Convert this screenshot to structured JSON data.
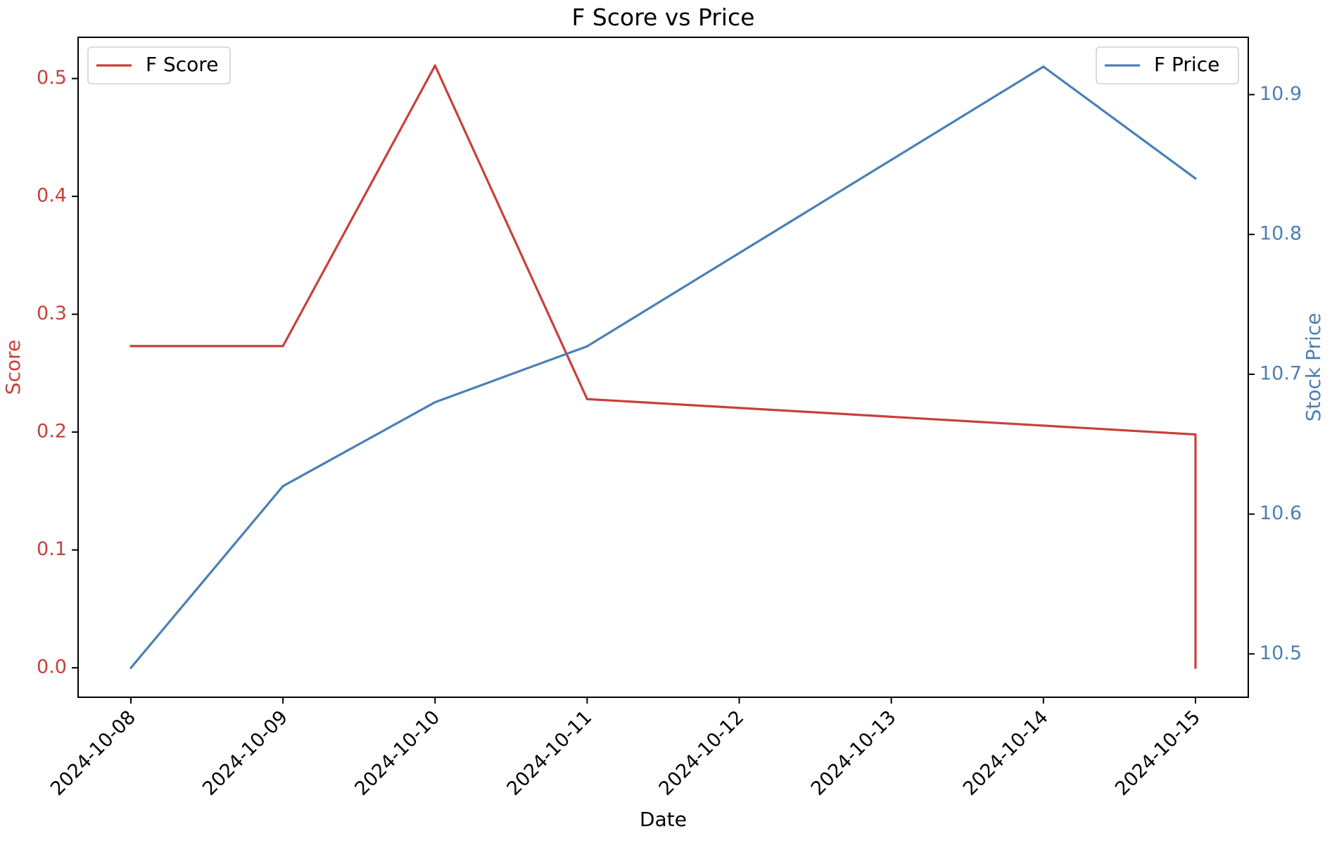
{
  "chart_data": {
    "type": "line",
    "title": "F Score vs Price",
    "xlabel": "Date",
    "ylabel_left": "Score",
    "ylabel_right": "Stock Price",
    "x": [
      "2024-10-08",
      "2024-10-09",
      "2024-10-10",
      "2024-10-11",
      "2024-10-12",
      "2024-10-13",
      "2024-10-14",
      "2024-10-15"
    ],
    "left_axis": {
      "ylim": [
        -0.025,
        0.535
      ],
      "ticks": [
        0.0,
        0.1,
        0.2,
        0.3,
        0.4,
        0.5
      ],
      "tick_labels": [
        "0.0",
        "0.1",
        "0.2",
        "0.3",
        "0.4",
        "0.5"
      ],
      "color": "#c8403a"
    },
    "right_axis": {
      "ylim": [
        10.469,
        10.941
      ],
      "ticks": [
        10.5,
        10.6,
        10.7,
        10.8,
        10.9
      ],
      "tick_labels": [
        "10.5",
        "10.6",
        "10.7",
        "10.8",
        "10.9"
      ],
      "color": "#4a80b5"
    },
    "series": [
      {
        "name": "F Score",
        "axis": "left",
        "color": "#c8403a",
        "points": [
          {
            "x": "2024-10-08",
            "y": 0.273
          },
          {
            "x": "2024-10-09",
            "y": 0.273
          },
          {
            "x": "2024-10-10",
            "y": 0.511
          },
          {
            "x": "2024-10-11",
            "y": 0.228
          },
          {
            "x": "2024-10-15",
            "y": 0.198
          },
          {
            "x": "2024-10-15",
            "y": 0.0
          }
        ]
      },
      {
        "name": "F Price",
        "axis": "right",
        "color": "#4a80b5",
        "points": [
          {
            "x": "2024-10-08",
            "y": 10.49
          },
          {
            "x": "2024-10-09",
            "y": 10.62
          },
          {
            "x": "2024-10-10",
            "y": 10.68
          },
          {
            "x": "2024-10-11",
            "y": 10.72
          },
          {
            "x": "2024-10-14",
            "y": 10.92
          },
          {
            "x": "2024-10-15",
            "y": 10.84
          }
        ]
      }
    ],
    "legends": [
      {
        "label": "F Score",
        "series": "F Score",
        "position": "upper-left"
      },
      {
        "label": "F Price",
        "series": "F Price",
        "position": "upper-right"
      }
    ],
    "grid": false
  }
}
